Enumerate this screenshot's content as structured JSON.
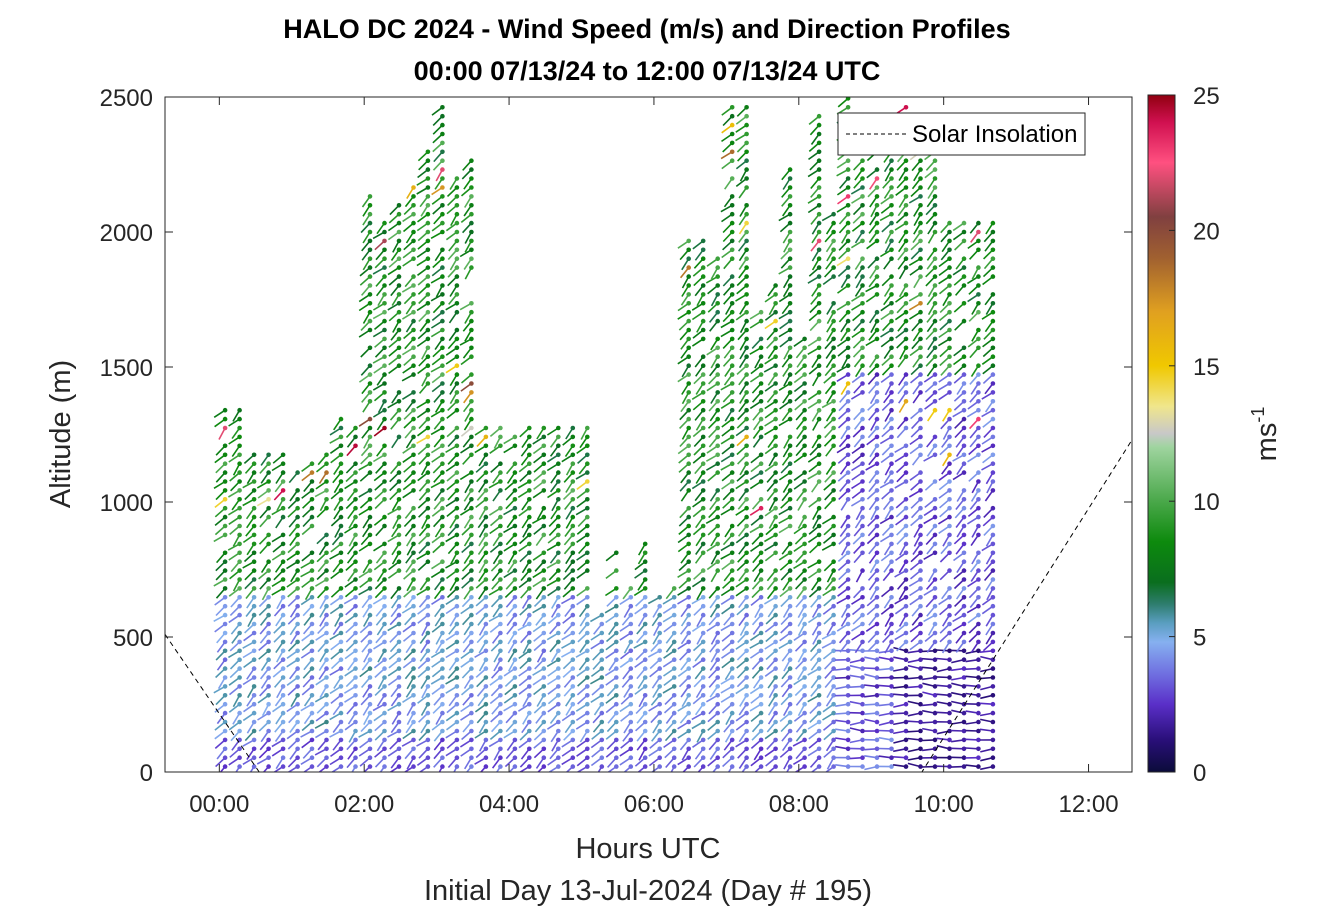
{
  "chart_data": {
    "type": "wind-barb-profile",
    "title": "HALO DC 2024 - Wind Speed (m/s) and Direction Profiles",
    "subtitle": "00:00 07/13/24 to 12:00 07/13/24  UTC",
    "xlabel": "Hours UTC",
    "xlabel2": "Initial Day 13-Jul-2024 (Day # 195)",
    "ylabel": "Altitude (m)",
    "xlim": [
      -0.75,
      12.6
    ],
    "ylim": [
      0,
      2500
    ],
    "x_ticks": [
      0,
      2,
      4,
      6,
      8,
      10,
      12
    ],
    "x_tick_labels": [
      "00:00",
      "02:00",
      "04:00",
      "06:00",
      "08:00",
      "10:00",
      "12:00"
    ],
    "y_ticks": [
      0,
      500,
      1000,
      1500,
      2000,
      2500
    ],
    "y_tick_labels": [
      "0",
      "500",
      "1000",
      "1500",
      "2000",
      "2500"
    ],
    "colorbar": {
      "label": "ms",
      "label_superscript": "-1",
      "range": [
        0,
        25
      ],
      "ticks": [
        0,
        5,
        10,
        15,
        20,
        25
      ],
      "tick_labels": [
        "0",
        "5",
        "10",
        "15",
        "20",
        "25"
      ],
      "stops": [
        {
          "v": 0,
          "color": "#0b0b3a"
        },
        {
          "v": 1.2,
          "color": "#2a0f7a"
        },
        {
          "v": 2.5,
          "color": "#5a2fc8"
        },
        {
          "v": 3.6,
          "color": "#6f6ee0"
        },
        {
          "v": 4.8,
          "color": "#86b0f0"
        },
        {
          "v": 5.5,
          "color": "#5a9ec0"
        },
        {
          "v": 6.2,
          "color": "#2e7d6e"
        },
        {
          "v": 7.0,
          "color": "#0a6e1e"
        },
        {
          "v": 8.5,
          "color": "#0d8a0d"
        },
        {
          "v": 10.0,
          "color": "#4aa84a"
        },
        {
          "v": 12.0,
          "color": "#9fd49f"
        },
        {
          "v": 12.5,
          "color": "#c8c8c8"
        },
        {
          "v": 13.5,
          "color": "#f0e68c"
        },
        {
          "v": 15.0,
          "color": "#f0c800"
        },
        {
          "v": 17.0,
          "color": "#e0a020"
        },
        {
          "v": 19.0,
          "color": "#a06030"
        },
        {
          "v": 20.5,
          "color": "#804040"
        },
        {
          "v": 22.5,
          "color": "#ff5080"
        },
        {
          "v": 24.0,
          "color": "#d01050"
        },
        {
          "v": 25.0,
          "color": "#900010"
        }
      ]
    },
    "legend": {
      "entries": [
        "Solar Insolation"
      ],
      "location": "top-right"
    },
    "solar_insolation": {
      "line_style": "dashed",
      "points": [
        {
          "x": -0.75,
          "y": 510
        },
        {
          "x": 0.55,
          "y": 0
        },
        {
          "x": 9.7,
          "y": 0
        },
        {
          "x": 12.6,
          "y": 1230
        }
      ]
    },
    "profiles": {
      "x_start": 0.08,
      "x_step": 0.2,
      "x_end": 10.75,
      "z_step": 33,
      "z_min": 20,
      "notes": "Profiles of wind speed/direction vs altitude; low-level (<700 m) winds 2-6 m/s, upper winds 6-11 m/s, isolated 12-25 m/s outliers."
    }
  }
}
